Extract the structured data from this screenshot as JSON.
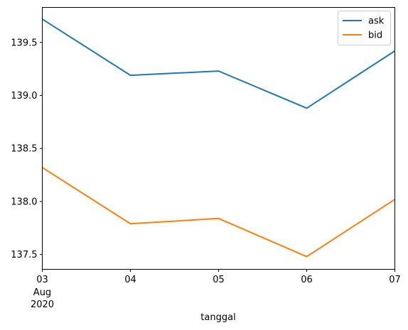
{
  "chart_data": {
    "type": "line",
    "x": [
      "2020-08-03",
      "2020-08-04",
      "2020-08-05",
      "2020-08-06",
      "2020-08-07"
    ],
    "x_tick_labels": [
      {
        "day": "03",
        "month": "Aug",
        "year": "2020"
      },
      {
        "day": "04"
      },
      {
        "day": "05"
      },
      {
        "day": "06"
      },
      {
        "day": "07"
      }
    ],
    "series": [
      {
        "name": "ask",
        "color": "#1f77b4",
        "values": [
          139.72,
          139.19,
          139.23,
          138.88,
          139.42
        ]
      },
      {
        "name": "bid",
        "color": "#ff7f0e",
        "values": [
          138.32,
          137.79,
          137.84,
          137.48,
          138.02
        ]
      }
    ],
    "xlabel": "tanggal",
    "ylabel": "",
    "ylim": [
      137.36,
      139.83
    ],
    "yticks": [
      137.5,
      138.0,
      138.5,
      139.0,
      139.5
    ],
    "ytick_labels": [
      "137.5",
      "138.0",
      "138.5",
      "139.0",
      "139.5"
    ],
    "grid": false,
    "legend_position": "top-right"
  }
}
